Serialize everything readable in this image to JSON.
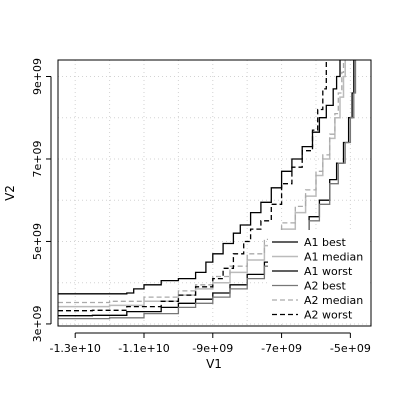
{
  "chart_data": {
    "type": "line",
    "title": "",
    "xlabel": "V1",
    "ylabel": "V2",
    "xlim": [
      -13500000000,
      -4400000000
    ],
    "ylim": [
      2950000000,
      9400000000
    ],
    "grid": true,
    "x_ticks": [
      {
        "value": -13000000000,
        "label": "-1.3e+10"
      },
      {
        "value": -11000000000,
        "label": "-1.1e+10"
      },
      {
        "value": -9000000000,
        "label": "-9e+09"
      },
      {
        "value": -7000000000,
        "label": "-7e+09"
      },
      {
        "value": -5000000000,
        "label": "-5e+09"
      }
    ],
    "y_ticks": [
      {
        "value": 3000000000,
        "label": "3e+09"
      },
      {
        "value": 5000000000,
        "label": "5e+09"
      },
      {
        "value": 7000000000,
        "label": "7e+09"
      },
      {
        "value": 9000000000,
        "label": "9e+09"
      }
    ],
    "grid_x": [
      -13000000000,
      -12000000000,
      -11000000000,
      -10000000000,
      -9000000000,
      -8000000000,
      -7000000000,
      -6000000000,
      -5000000000
    ],
    "grid_y": [
      3000000000,
      4000000000,
      5000000000,
      6000000000,
      7000000000,
      8000000000,
      9000000000
    ],
    "legend_position": "bottom-right",
    "series": [
      {
        "name": "A1 best",
        "color": "#000000",
        "dash": "solid",
        "width": 1.3,
        "points": [
          [
            -13500000000,
            3730000000
          ],
          [
            -11500000000,
            3750000000
          ],
          [
            -11300000000,
            3850000000
          ],
          [
            -11000000000,
            3950000000
          ],
          [
            -10500000000,
            4050000000
          ],
          [
            -10000000000,
            4100000000
          ],
          [
            -9500000000,
            4250000000
          ],
          [
            -9200000000,
            4500000000
          ],
          [
            -9000000000,
            4700000000
          ],
          [
            -8700000000,
            4950000000
          ],
          [
            -8400000000,
            5200000000
          ],
          [
            -8200000000,
            5400000000
          ],
          [
            -7900000000,
            5700000000
          ],
          [
            -7600000000,
            5950000000
          ],
          [
            -7300000000,
            6300000000
          ],
          [
            -7000000000,
            6700000000
          ],
          [
            -6700000000,
            7000000000
          ],
          [
            -6400000000,
            7300000000
          ],
          [
            -6100000000,
            7650000000
          ],
          [
            -5900000000,
            8000000000
          ],
          [
            -5700000000,
            8300000000
          ],
          [
            -5500000000,
            8700000000
          ],
          [
            -5400000000,
            9000000000
          ],
          [
            -5300000000,
            9400000000
          ]
        ]
      },
      {
        "name": "A1 median",
        "color": "#bbbbbb",
        "dash": "solid",
        "width": 1.5,
        "points": [
          [
            -13500000000,
            3420000000
          ],
          [
            -12000000000,
            3450000000
          ],
          [
            -11000000000,
            3550000000
          ],
          [
            -10000000000,
            3700000000
          ],
          [
            -9500000000,
            3850000000
          ],
          [
            -9000000000,
            4000000000
          ],
          [
            -8500000000,
            4250000000
          ],
          [
            -8000000000,
            4550000000
          ],
          [
            -7500000000,
            4900000000
          ],
          [
            -7000000000,
            5300000000
          ],
          [
            -6600000000,
            5700000000
          ],
          [
            -6300000000,
            6100000000
          ],
          [
            -6000000000,
            6600000000
          ],
          [
            -5800000000,
            7000000000
          ],
          [
            -5600000000,
            7500000000
          ],
          [
            -5450000000,
            8000000000
          ],
          [
            -5300000000,
            8500000000
          ],
          [
            -5200000000,
            9000000000
          ],
          [
            -5150000000,
            9400000000
          ]
        ]
      },
      {
        "name": "A1 worst",
        "color": "#000000",
        "dash": "solid",
        "width": 1.3,
        "points": [
          [
            -13500000000,
            3200000000
          ],
          [
            -12500000000,
            3210000000
          ],
          [
            -11500000000,
            3300000000
          ],
          [
            -10500000000,
            3400000000
          ],
          [
            -10000000000,
            3500000000
          ],
          [
            -9500000000,
            3600000000
          ],
          [
            -9000000000,
            3750000000
          ],
          [
            -8500000000,
            3950000000
          ],
          [
            -8000000000,
            4200000000
          ],
          [
            -7500000000,
            4500000000
          ],
          [
            -7000000000,
            4800000000
          ],
          [
            -6600000000,
            5200000000
          ],
          [
            -6200000000,
            5600000000
          ],
          [
            -5900000000,
            6000000000
          ],
          [
            -5600000000,
            6500000000
          ],
          [
            -5400000000,
            6900000000
          ],
          [
            -5200000000,
            7400000000
          ],
          [
            -5050000000,
            8000000000
          ],
          [
            -4950000000,
            8600000000
          ],
          [
            -4900000000,
            9400000000
          ]
        ]
      },
      {
        "name": "A2 best",
        "color": "#777777",
        "dash": "solid",
        "width": 1.3,
        "points": [
          [
            -13500000000,
            3130000000
          ],
          [
            -12000000000,
            3150000000
          ],
          [
            -11000000000,
            3250000000
          ],
          [
            -10000000000,
            3400000000
          ],
          [
            -9500000000,
            3500000000
          ],
          [
            -9000000000,
            3650000000
          ],
          [
            -8500000000,
            3850000000
          ],
          [
            -8000000000,
            4100000000
          ],
          [
            -7500000000,
            4400000000
          ],
          [
            -7000000000,
            4700000000
          ],
          [
            -6600000000,
            5100000000
          ],
          [
            -6200000000,
            5500000000
          ],
          [
            -5900000000,
            5900000000
          ],
          [
            -5600000000,
            6400000000
          ],
          [
            -5350000000,
            6900000000
          ],
          [
            -5150000000,
            7400000000
          ],
          [
            -5000000000,
            8000000000
          ],
          [
            -4900000000,
            8600000000
          ],
          [
            -4850000000,
            9400000000
          ]
        ]
      },
      {
        "name": "A2 median",
        "color": "#aaaaaa",
        "dash": "dashed",
        "width": 1.3,
        "points": [
          [
            -13500000000,
            3520000000
          ],
          [
            -12000000000,
            3550000000
          ],
          [
            -11000000000,
            3650000000
          ],
          [
            -10000000000,
            3800000000
          ],
          [
            -9500000000,
            3950000000
          ],
          [
            -9000000000,
            4150000000
          ],
          [
            -8500000000,
            4400000000
          ],
          [
            -8000000000,
            4700000000
          ],
          [
            -7500000000,
            5050000000
          ],
          [
            -7000000000,
            5450000000
          ],
          [
            -6600000000,
            5850000000
          ],
          [
            -6300000000,
            6250000000
          ],
          [
            -6000000000,
            6700000000
          ],
          [
            -5800000000,
            7100000000
          ],
          [
            -5600000000,
            7600000000
          ],
          [
            -5450000000,
            8100000000
          ],
          [
            -5350000000,
            8600000000
          ],
          [
            -5250000000,
            9100000000
          ],
          [
            -5200000000,
            9400000000
          ]
        ]
      },
      {
        "name": "A2 worst",
        "color": "#000000",
        "dash": "dashed",
        "width": 1.3,
        "points": [
          [
            -13500000000,
            3320000000
          ],
          [
            -12500000000,
            3330000000
          ],
          [
            -11500000000,
            3420000000
          ],
          [
            -10500000000,
            3550000000
          ],
          [
            -10000000000,
            3700000000
          ],
          [
            -9500000000,
            3900000000
          ],
          [
            -9000000000,
            4100000000
          ],
          [
            -8700000000,
            4350000000
          ],
          [
            -8400000000,
            4700000000
          ],
          [
            -8100000000,
            5000000000
          ],
          [
            -7900000000,
            5300000000
          ],
          [
            -7600000000,
            5500000000
          ],
          [
            -7300000000,
            5900000000
          ],
          [
            -7000000000,
            6400000000
          ],
          [
            -6700000000,
            6800000000
          ],
          [
            -6400000000,
            7200000000
          ],
          [
            -6100000000,
            7700000000
          ],
          [
            -5950000000,
            8200000000
          ],
          [
            -5800000000,
            8700000000
          ],
          [
            -5700000000,
            9400000000
          ]
        ]
      }
    ]
  }
}
